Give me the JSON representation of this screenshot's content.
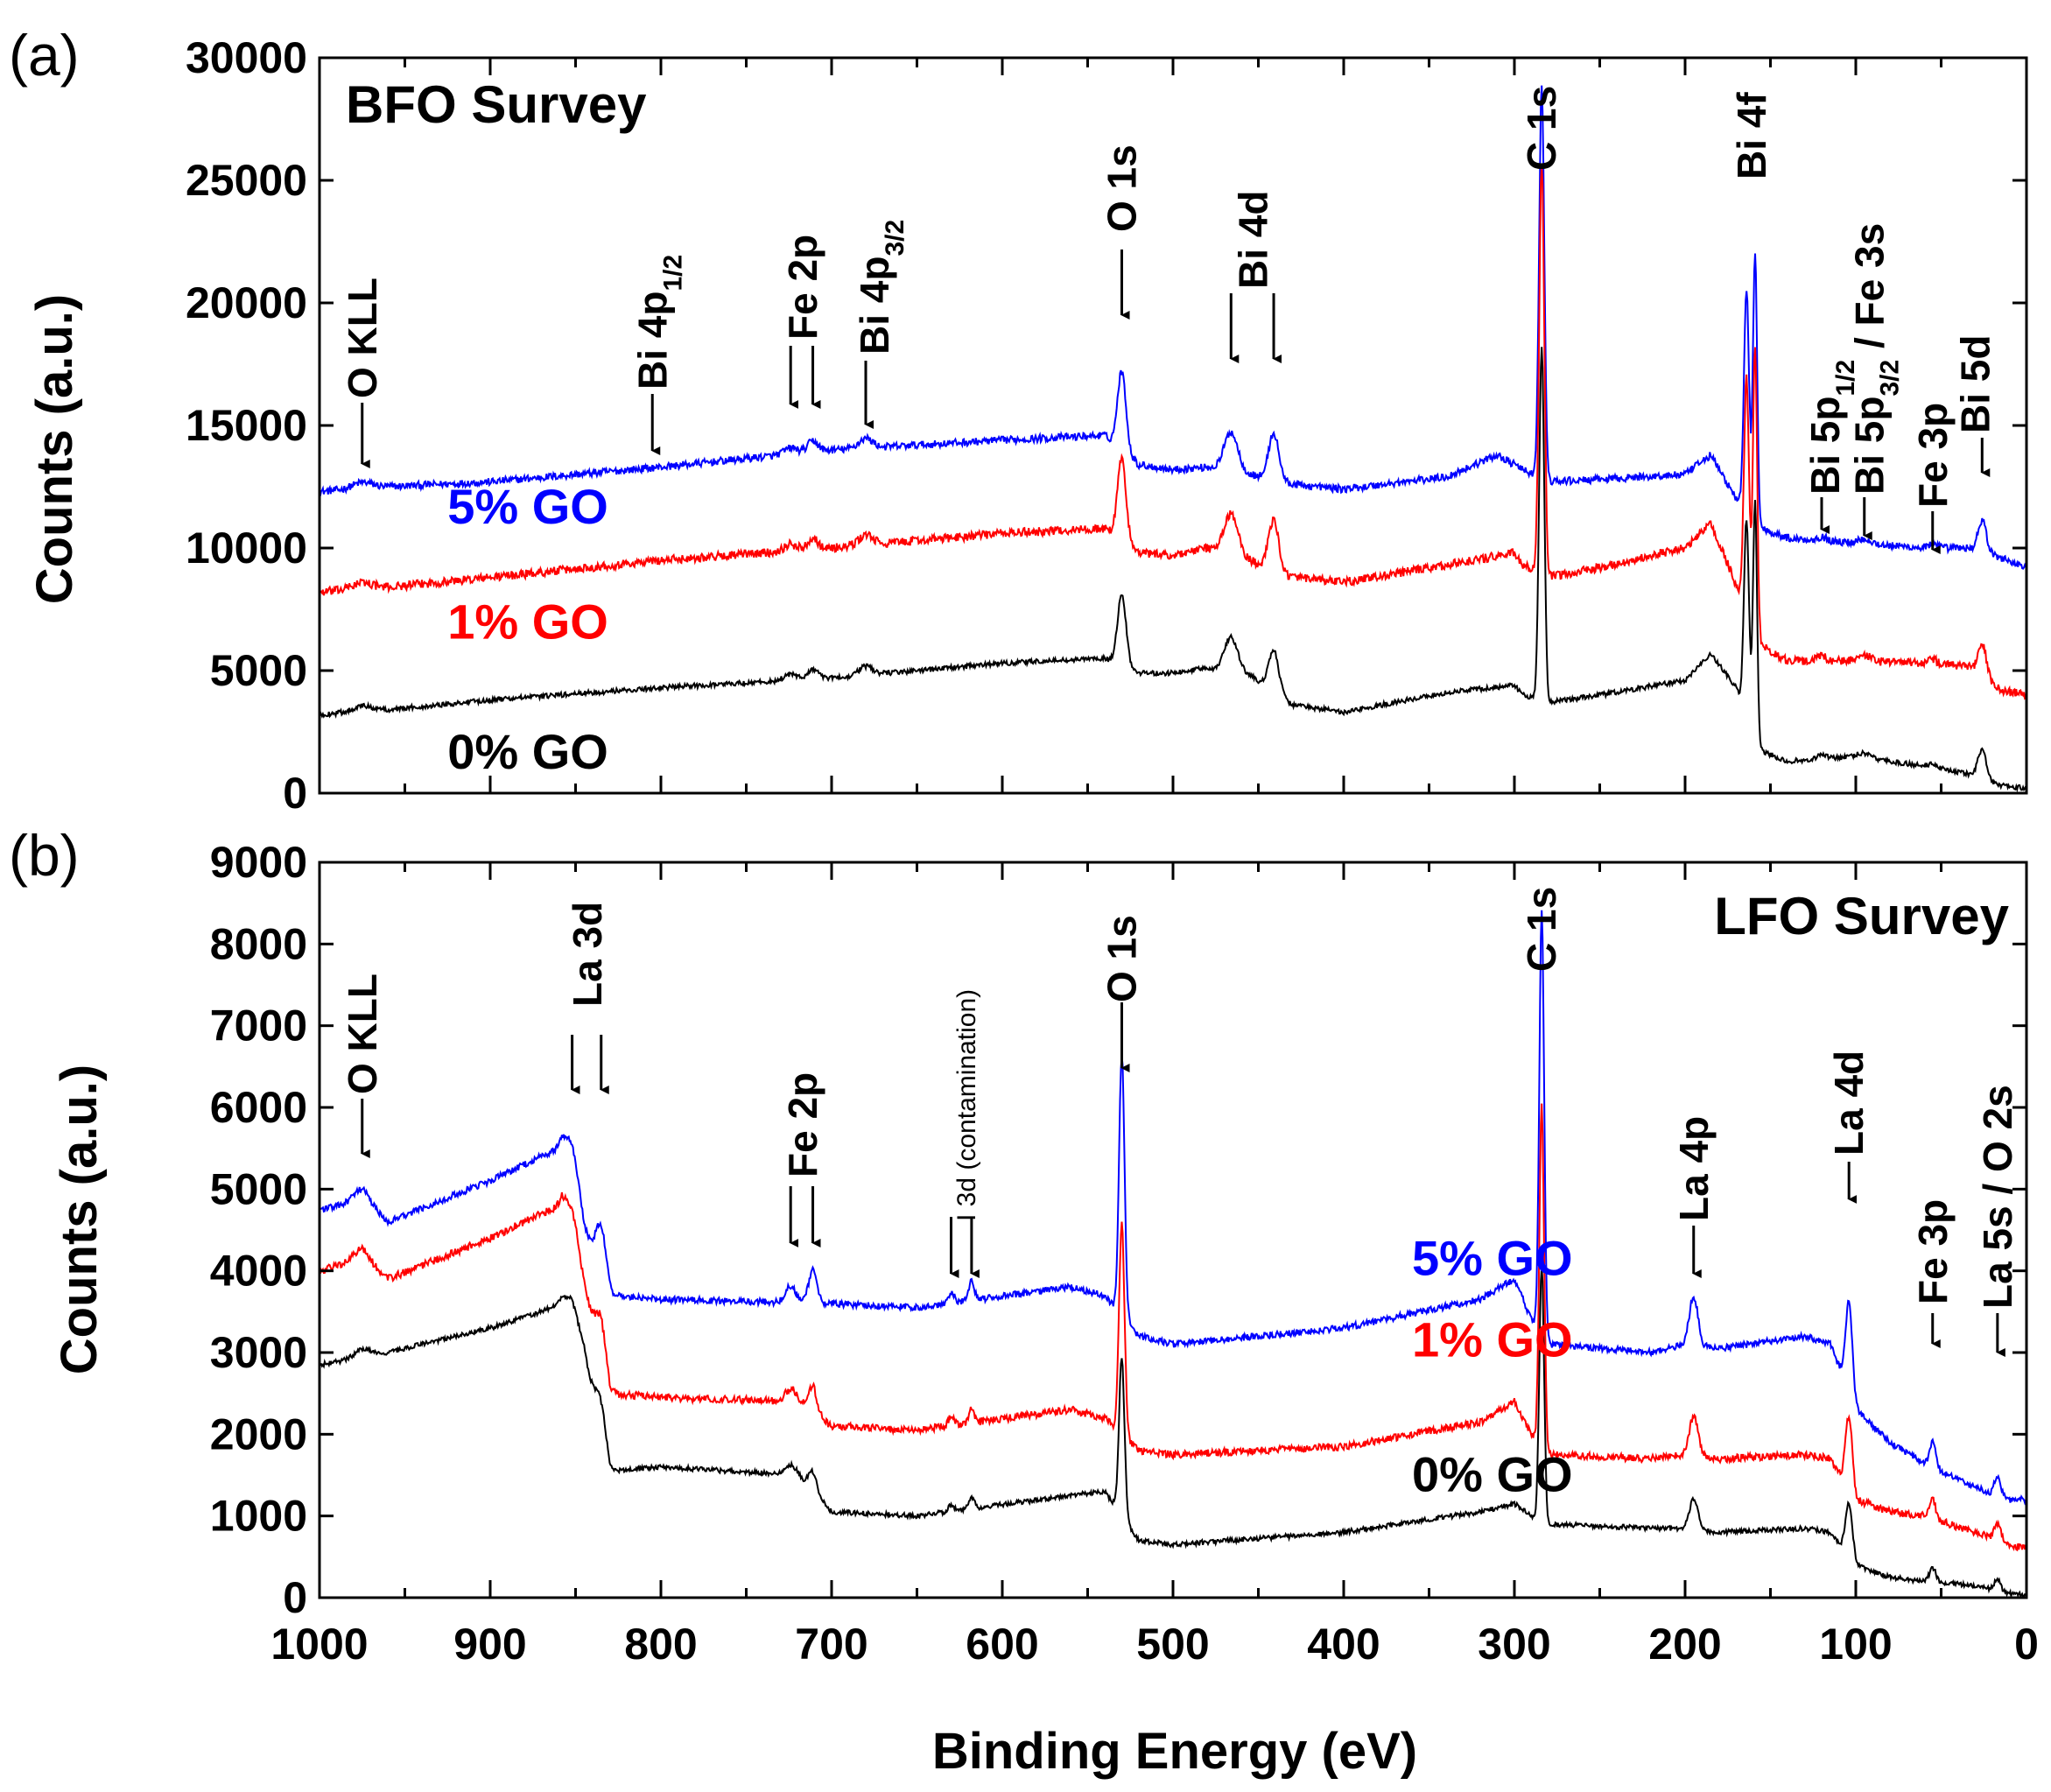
{
  "chart_data": [
    {
      "type": "line",
      "panel_label": "(a)",
      "title": "BFO Survey",
      "xlabel": "",
      "ylabel": "Counts (a.u.)",
      "xlim": [
        1000,
        0
      ],
      "ylim": [
        0,
        30000
      ],
      "x_ticks": [],
      "y_ticks": [
        "0",
        "5000",
        "10000",
        "15000",
        "20000",
        "25000",
        "30000"
      ],
      "grid": false,
      "series": [
        {
          "name": "5% GO",
          "color": "#0000ff",
          "label_at": [
            925,
            11000
          ],
          "baseline_pts": [
            [
              1000,
              12300
            ],
            [
              960,
              12500
            ],
            [
              900,
              12700
            ],
            [
              800,
              13300
            ],
            [
              700,
              14000
            ],
            [
              600,
              14400
            ],
            [
              540,
              14600
            ],
            [
              520,
              13400
            ],
            [
              500,
              13200
            ],
            [
              480,
              13300
            ],
            [
              455,
              13000
            ],
            [
              430,
              12600
            ],
            [
              400,
              12400
            ],
            [
              340,
              12900
            ],
            [
              310,
              13800
            ],
            [
              295,
              13200
            ],
            [
              280,
              12700
            ],
            [
              250,
              12800
            ],
            [
              200,
              13000
            ],
            [
              185,
              13800
            ],
            [
              170,
              12000
            ],
            [
              155,
              10800
            ],
            [
              140,
              10400
            ],
            [
              100,
              10200
            ],
            [
              60,
              10000
            ],
            [
              35,
              10000
            ],
            [
              15,
              9600
            ],
            [
              0,
              9200
            ]
          ]
        },
        {
          "name": "1% GO",
          "color": "#ff0000",
          "label_at": [
            925,
            6300
          ],
          "baseline_pts": [
            [
              1000,
              8200
            ],
            [
              960,
              8400
            ],
            [
              900,
              8800
            ],
            [
              800,
              9500
            ],
            [
              700,
              10000
            ],
            [
              600,
              10600
            ],
            [
              540,
              10800
            ],
            [
              520,
              9800
            ],
            [
              500,
              9700
            ],
            [
              480,
              10000
            ],
            [
              455,
              9500
            ],
            [
              430,
              8800
            ],
            [
              400,
              8600
            ],
            [
              340,
              9300
            ],
            [
              300,
              9800
            ],
            [
              295,
              9300
            ],
            [
              280,
              8800
            ],
            [
              250,
              9200
            ],
            [
              200,
              10000
            ],
            [
              185,
              11000
            ],
            [
              170,
              8500
            ],
            [
              155,
              6000
            ],
            [
              140,
              5400
            ],
            [
              100,
              5400
            ],
            [
              60,
              5300
            ],
            [
              35,
              5200
            ],
            [
              15,
              4200
            ],
            [
              0,
              4000
            ]
          ]
        },
        {
          "name": "0% GO",
          "color": "#000000",
          "label_at": [
            925,
            1000
          ],
          "baseline_pts": [
            [
              1000,
              3200
            ],
            [
              960,
              3400
            ],
            [
              900,
              3800
            ],
            [
              800,
              4300
            ],
            [
              700,
              4700
            ],
            [
              600,
              5300
            ],
            [
              540,
              5500
            ],
            [
              520,
              4900
            ],
            [
              500,
              4900
            ],
            [
              480,
              5100
            ],
            [
              455,
              4800
            ],
            [
              430,
              3600
            ],
            [
              400,
              3300
            ],
            [
              340,
              4100
            ],
            [
              300,
              4400
            ],
            [
              295,
              4000
            ],
            [
              280,
              3700
            ],
            [
              250,
              4000
            ],
            [
              200,
              4600
            ],
            [
              185,
              5700
            ],
            [
              170,
              4300
            ],
            [
              158,
              1800
            ],
            [
              140,
              1300
            ],
            [
              100,
              1500
            ],
            [
              60,
              1100
            ],
            [
              35,
              800
            ],
            [
              15,
              300
            ],
            [
              0,
              200
            ]
          ]
        }
      ],
      "peaks": [
        {
          "label": "O KLL",
          "x": 975
        },
        {
          "label": "Bi 4p1/2",
          "x": 805
        },
        {
          "label": "Fe 2p",
          "x": [
            724,
            711
          ]
        },
        {
          "label": "Bi 4p3/2",
          "x": 680
        },
        {
          "label": "O 1s",
          "x": 530
        },
        {
          "label": "Bi 4d",
          "x": [
            466,
            441
          ]
        },
        {
          "label": "C 1s",
          "x": 284
        },
        {
          "label": "Bi 4f",
          "x": [
            164,
            159
          ]
        },
        {
          "label": "Bi 5p1/2",
          "x": 120
        },
        {
          "label": "Bi 5p3/2 / Fe 3s",
          "x": 95
        },
        {
          "label": "Fe 3p",
          "x": 55
        },
        {
          "label": "Bi 5d",
          "x": 26
        }
      ],
      "peak_label_text": {
        "o_kll": "O KLL",
        "bi4p12": "Bi 4p",
        "bi4p12_sub": "1/2",
        "fe2p": "Fe 2p",
        "bi4p32": "Bi 4p",
        "bi4p32_sub": "3/2",
        "o1s": "O 1s",
        "bi4d": "Bi 4d",
        "c1s": "C 1s",
        "bi4f": "Bi 4f",
        "bi5p12": "Bi 5p",
        "bi5p12_sub": "1/2",
        "bi5p32": "Bi 5p",
        "bi5p32_sub": "3/2",
        "bi5p32_rest": " / Fe 3s",
        "fe3p": "Fe 3p",
        "bi5d": "Bi 5d"
      }
    },
    {
      "type": "line",
      "panel_label": "(b)",
      "title": "LFO Survey",
      "xlabel": "Binding Energy (eV)",
      "ylabel": "Counts (a.u.)",
      "xlim": [
        1000,
        0
      ],
      "ylim": [
        0,
        9000
      ],
      "x_ticks": [
        "1000",
        "900",
        "800",
        "700",
        "600",
        "500",
        "400",
        "300",
        "200",
        "100",
        "0"
      ],
      "y_ticks": [
        "0",
        "1000",
        "2000",
        "3000",
        "4000",
        "5000",
        "6000",
        "7000",
        "8000",
        "9000"
      ],
      "grid": false,
      "series": [
        {
          "name": "5% GO",
          "color": "#0000ff",
          "label_at": [
            360,
            3950
          ],
          "baseline_pts": [
            [
              1000,
              4750
            ],
            [
              975,
              4850
            ],
            [
              960,
              4600
            ],
            [
              900,
              5100
            ],
            [
              870,
              5400
            ],
            [
              858,
              5500
            ],
            [
              845,
              4500
            ],
            [
              830,
              3700
            ],
            [
              800,
              3650
            ],
            [
              700,
              3600
            ],
            [
              650,
              3550
            ],
            [
              560,
              3800
            ],
            [
              540,
              3700
            ],
            [
              520,
              3200
            ],
            [
              500,
              3100
            ],
            [
              400,
              3300
            ],
            [
              320,
              3650
            ],
            [
              300,
              3900
            ],
            [
              290,
              3400
            ],
            [
              280,
              3100
            ],
            [
              220,
              3000
            ],
            [
              200,
              3100
            ],
            [
              180,
              3050
            ],
            [
              130,
              3200
            ],
            [
              115,
              3100
            ],
            [
              100,
              2300
            ],
            [
              80,
              1900
            ],
            [
              60,
              1650
            ],
            [
              30,
              1350
            ],
            [
              10,
              1200
            ],
            [
              0,
              1200
            ]
          ]
        },
        {
          "name": "1% GO",
          "color": "#ff0000",
          "label_at": [
            360,
            2950
          ],
          "baseline_pts": [
            [
              1000,
              4000
            ],
            [
              975,
              4150
            ],
            [
              960,
              3900
            ],
            [
              900,
              4400
            ],
            [
              870,
              4700
            ],
            [
              858,
              4800
            ],
            [
              845,
              3800
            ],
            [
              830,
              2500
            ],
            [
              800,
              2450
            ],
            [
              720,
              2400
            ],
            [
              700,
              2100
            ],
            [
              650,
              2050
            ],
            [
              560,
              2300
            ],
            [
              540,
              2200
            ],
            [
              520,
              1800
            ],
            [
              500,
              1750
            ],
            [
              400,
              1850
            ],
            [
              320,
              2150
            ],
            [
              300,
              2400
            ],
            [
              290,
              2000
            ],
            [
              280,
              1750
            ],
            [
              220,
              1700
            ],
            [
              200,
              1750
            ],
            [
              180,
              1700
            ],
            [
              130,
              1750
            ],
            [
              115,
              1700
            ],
            [
              100,
              1200
            ],
            [
              80,
              1050
            ],
            [
              60,
              1000
            ],
            [
              30,
              800
            ],
            [
              10,
              650
            ],
            [
              0,
              600
            ]
          ]
        },
        {
          "name": "0% GO",
          "color": "#000000",
          "label_at": [
            360,
            1300
          ],
          "baseline_pts": [
            [
              1000,
              2850
            ],
            [
              960,
              3000
            ],
            [
              900,
              3300
            ],
            [
              870,
              3500
            ],
            [
              858,
              3600
            ],
            [
              845,
              3000
            ],
            [
              830,
              1550
            ],
            [
              800,
              1600
            ],
            [
              720,
              1500
            ],
            [
              700,
              1050
            ],
            [
              650,
              1000
            ],
            [
              560,
              1250
            ],
            [
              540,
              1300
            ],
            [
              520,
              700
            ],
            [
              500,
              650
            ],
            [
              400,
              800
            ],
            [
              320,
              1050
            ],
            [
              300,
              1150
            ],
            [
              290,
              1000
            ],
            [
              280,
              900
            ],
            [
              220,
              850
            ],
            [
              200,
              850
            ],
            [
              180,
              800
            ],
            [
              130,
              850
            ],
            [
              115,
              800
            ],
            [
              100,
              400
            ],
            [
              80,
              250
            ],
            [
              60,
              200
            ],
            [
              30,
              150
            ],
            [
              10,
              50
            ],
            [
              0,
              30
            ]
          ]
        }
      ],
      "peaks": [
        {
          "label": "O KLL",
          "x": 975
        },
        {
          "label": "La 3d",
          "x": [
            852,
            835
          ]
        },
        {
          "label": "Fe 2p",
          "x": [
            724,
            711
          ]
        },
        {
          "label": "I 3d (contamination)",
          "x": [
            630,
            618
          ]
        },
        {
          "label": "O 1s",
          "x": 530
        },
        {
          "label": "C 1s",
          "x": 284
        },
        {
          "label": "La 4p",
          "x": 195
        },
        {
          "label": "La 4d",
          "x": 104
        },
        {
          "label": "Fe 3p",
          "x": 55
        },
        {
          "label": "La 5s / O 2s",
          "x": 17
        }
      ],
      "peak_label_text": {
        "o_kll": "O KLL",
        "la3d": "La 3d",
        "fe2p": "Fe 2p",
        "i3d": "I 3d (contamination)",
        "o1s": "O 1s",
        "c1s": "C 1s",
        "la4p": "La 4p",
        "la4d": "La 4d",
        "fe3p": "Fe 3p",
        "la5s": "La 5s / O 2s"
      }
    }
  ]
}
